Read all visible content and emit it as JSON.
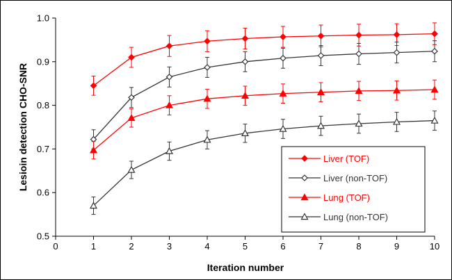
{
  "chart_data": {
    "type": "line",
    "xlabel": "Iteration number",
    "ylabel": "Lesioin detection CHO-SNR",
    "xlim": [
      0,
      10
    ],
    "ylim": [
      0.5,
      1.0
    ],
    "x_ticks": [
      "0",
      "1",
      "2",
      "3",
      "4",
      "5",
      "6",
      "7",
      "8",
      "9",
      "10"
    ],
    "y_ticks": [
      "0.5",
      "0.6",
      "0.7",
      "0.8",
      "0.9",
      "1.0"
    ],
    "grid": "none",
    "legend_position": "bottom-right",
    "x": [
      1,
      2,
      3,
      4,
      5,
      6,
      7,
      8,
      9,
      10
    ],
    "series": [
      {
        "name": "Liver (TOF)",
        "color": "#ff0000",
        "marker": "diamond-filled",
        "values": [
          0.845,
          0.91,
          0.936,
          0.947,
          0.953,
          0.957,
          0.959,
          0.961,
          0.962,
          0.964
        ],
        "error": [
          0.022,
          0.023,
          0.024,
          0.024,
          0.024,
          0.024,
          0.025,
          0.025,
          0.025,
          0.025
        ]
      },
      {
        "name": "Liver (non-TOF)",
        "color": "#333333",
        "marker": "diamond-open",
        "values": [
          0.722,
          0.818,
          0.865,
          0.887,
          0.9,
          0.908,
          0.914,
          0.918,
          0.921,
          0.924
        ],
        "error": [
          0.022,
          0.023,
          0.023,
          0.023,
          0.023,
          0.023,
          0.023,
          0.024,
          0.024,
          0.024
        ]
      },
      {
        "name": "Lung (TOF)",
        "color": "#ff0000",
        "marker": "triangle-filled",
        "values": [
          0.697,
          0.771,
          0.8,
          0.815,
          0.822,
          0.827,
          0.83,
          0.833,
          0.834,
          0.836
        ],
        "error": [
          0.02,
          0.021,
          0.022,
          0.022,
          0.022,
          0.022,
          0.022,
          0.022,
          0.022,
          0.022
        ]
      },
      {
        "name": "Lung (non-TOF)",
        "color": "#333333",
        "marker": "triangle-open",
        "values": [
          0.57,
          0.652,
          0.695,
          0.721,
          0.736,
          0.746,
          0.753,
          0.758,
          0.762,
          0.765
        ],
        "error": [
          0.02,
          0.02,
          0.021,
          0.021,
          0.021,
          0.022,
          0.022,
          0.022,
          0.022,
          0.022
        ]
      }
    ]
  }
}
